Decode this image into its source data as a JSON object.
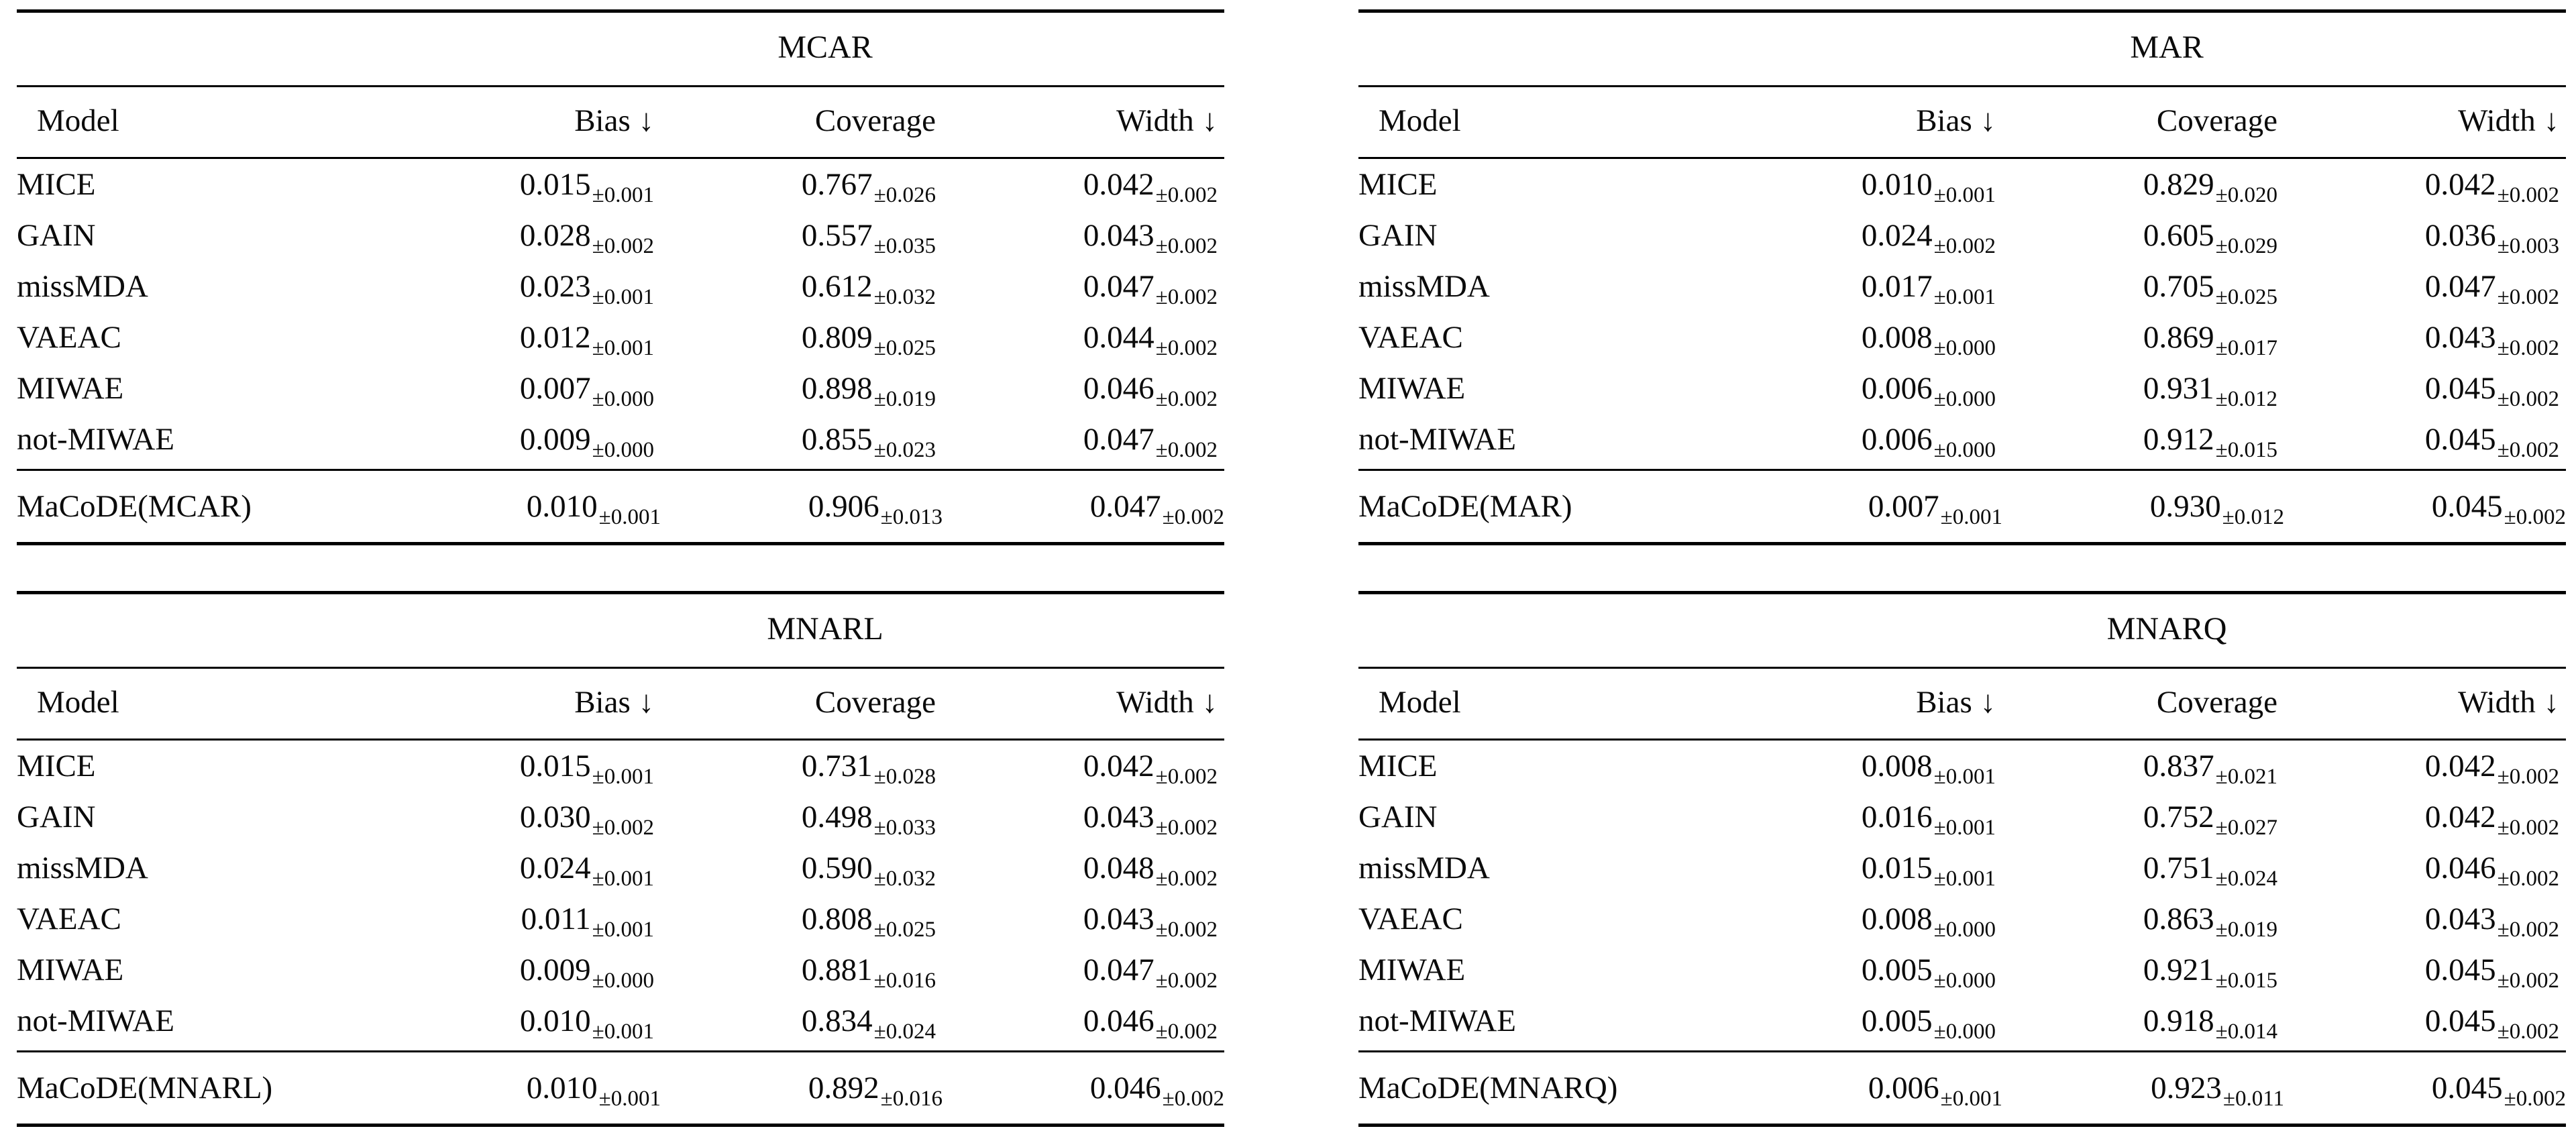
{
  "page": {
    "background": "#ffffff",
    "text_color": "#0b0b0b",
    "rule_color": "#000000"
  },
  "icons": {
    "down_arrow": "↓"
  },
  "tables": [
    {
      "title": "MCAR",
      "columns": [
        "Model",
        "Bias ↓",
        "Coverage",
        "Width ↓"
      ],
      "rows": [
        {
          "model": "MICE",
          "cells": [
            {
              "v": "0.015",
              "e": "±0.001"
            },
            {
              "v": "0.767",
              "e": "±0.026"
            },
            {
              "v": "0.042",
              "e": "±0.002"
            }
          ]
        },
        {
          "model": "GAIN",
          "cells": [
            {
              "v": "0.028",
              "e": "±0.002"
            },
            {
              "v": "0.557",
              "e": "±0.035"
            },
            {
              "v": "0.043",
              "e": "±0.002"
            }
          ]
        },
        {
          "model": "missMDA",
          "cells": [
            {
              "v": "0.023",
              "e": "±0.001"
            },
            {
              "v": "0.612",
              "e": "±0.032"
            },
            {
              "v": "0.047",
              "e": "±0.002"
            }
          ]
        },
        {
          "model": "VAEAC",
          "cells": [
            {
              "v": "0.012",
              "e": "±0.001"
            },
            {
              "v": "0.809",
              "e": "±0.025"
            },
            {
              "v": "0.044",
              "e": "±0.002"
            }
          ]
        },
        {
          "model": "MIWAE",
          "cells": [
            {
              "v": "0.007",
              "e": "±0.000"
            },
            {
              "v": "0.898",
              "e": "±0.019"
            },
            {
              "v": "0.046",
              "e": "±0.002"
            }
          ]
        },
        {
          "model": "not-MIWAE",
          "cells": [
            {
              "v": "0.009",
              "e": "±0.000"
            },
            {
              "v": "0.855",
              "e": "±0.023"
            },
            {
              "v": "0.047",
              "e": "±0.002"
            }
          ]
        }
      ],
      "final_row": {
        "model": "MaCoDE(MCAR)",
        "cells": [
          {
            "v": "0.010",
            "e": "±0.001"
          },
          {
            "v": "0.906",
            "e": "±0.013"
          },
          {
            "v": "0.047",
            "e": "±0.002"
          }
        ]
      }
    },
    {
      "title": "MAR",
      "columns": [
        "Model",
        "Bias ↓",
        "Coverage",
        "Width ↓"
      ],
      "rows": [
        {
          "model": "MICE",
          "cells": [
            {
              "v": "0.010",
              "e": "±0.001"
            },
            {
              "v": "0.829",
              "e": "±0.020"
            },
            {
              "v": "0.042",
              "e": "±0.002"
            }
          ]
        },
        {
          "model": "GAIN",
          "cells": [
            {
              "v": "0.024",
              "e": "±0.002"
            },
            {
              "v": "0.605",
              "e": "±0.029"
            },
            {
              "v": "0.036",
              "e": "±0.003"
            }
          ]
        },
        {
          "model": "missMDA",
          "cells": [
            {
              "v": "0.017",
              "e": "±0.001"
            },
            {
              "v": "0.705",
              "e": "±0.025"
            },
            {
              "v": "0.047",
              "e": "±0.002"
            }
          ]
        },
        {
          "model": "VAEAC",
          "cells": [
            {
              "v": "0.008",
              "e": "±0.000"
            },
            {
              "v": "0.869",
              "e": "±0.017"
            },
            {
              "v": "0.043",
              "e": "±0.002"
            }
          ]
        },
        {
          "model": "MIWAE",
          "cells": [
            {
              "v": "0.006",
              "e": "±0.000"
            },
            {
              "v": "0.931",
              "e": "±0.012"
            },
            {
              "v": "0.045",
              "e": "±0.002"
            }
          ]
        },
        {
          "model": "not-MIWAE",
          "cells": [
            {
              "v": "0.006",
              "e": "±0.000"
            },
            {
              "v": "0.912",
              "e": "±0.015"
            },
            {
              "v": "0.045",
              "e": "±0.002"
            }
          ]
        }
      ],
      "final_row": {
        "model": "MaCoDE(MAR)",
        "cells": [
          {
            "v": "0.007",
            "e": "±0.001"
          },
          {
            "v": "0.930",
            "e": "±0.012"
          },
          {
            "v": "0.045",
            "e": "±0.002"
          }
        ]
      }
    },
    {
      "title": "MNARL",
      "columns": [
        "Model",
        "Bias ↓",
        "Coverage",
        "Width ↓"
      ],
      "rows": [
        {
          "model": "MICE",
          "cells": [
            {
              "v": "0.015",
              "e": "±0.001"
            },
            {
              "v": "0.731",
              "e": "±0.028"
            },
            {
              "v": "0.042",
              "e": "±0.002"
            }
          ]
        },
        {
          "model": "GAIN",
          "cells": [
            {
              "v": "0.030",
              "e": "±0.002"
            },
            {
              "v": "0.498",
              "e": "±0.033"
            },
            {
              "v": "0.043",
              "e": "±0.002"
            }
          ]
        },
        {
          "model": "missMDA",
          "cells": [
            {
              "v": "0.024",
              "e": "±0.001"
            },
            {
              "v": "0.590",
              "e": "±0.032"
            },
            {
              "v": "0.048",
              "e": "±0.002"
            }
          ]
        },
        {
          "model": "VAEAC",
          "cells": [
            {
              "v": "0.011",
              "e": "±0.001"
            },
            {
              "v": "0.808",
              "e": "±0.025"
            },
            {
              "v": "0.043",
              "e": "±0.002"
            }
          ]
        },
        {
          "model": "MIWAE",
          "cells": [
            {
              "v": "0.009",
              "e": "±0.000"
            },
            {
              "v": "0.881",
              "e": "±0.016"
            },
            {
              "v": "0.047",
              "e": "±0.002"
            }
          ]
        },
        {
          "model": "not-MIWAE",
          "cells": [
            {
              "v": "0.010",
              "e": "±0.001"
            },
            {
              "v": "0.834",
              "e": "±0.024"
            },
            {
              "v": "0.046",
              "e": "±0.002"
            }
          ]
        }
      ],
      "final_row": {
        "model": "MaCoDE(MNARL)",
        "cells": [
          {
            "v": "0.010",
            "e": "±0.001"
          },
          {
            "v": "0.892",
            "e": "±0.016"
          },
          {
            "v": "0.046",
            "e": "±0.002"
          }
        ]
      }
    },
    {
      "title": "MNARQ",
      "columns": [
        "Model",
        "Bias ↓",
        "Coverage",
        "Width ↓"
      ],
      "rows": [
        {
          "model": "MICE",
          "cells": [
            {
              "v": "0.008",
              "e": "±0.001"
            },
            {
              "v": "0.837",
              "e": "±0.021"
            },
            {
              "v": "0.042",
              "e": "±0.002"
            }
          ]
        },
        {
          "model": "GAIN",
          "cells": [
            {
              "v": "0.016",
              "e": "±0.001"
            },
            {
              "v": "0.752",
              "e": "±0.027"
            },
            {
              "v": "0.042",
              "e": "±0.002"
            }
          ]
        },
        {
          "model": "missMDA",
          "cells": [
            {
              "v": "0.015",
              "e": "±0.001"
            },
            {
              "v": "0.751",
              "e": "±0.024"
            },
            {
              "v": "0.046",
              "e": "±0.002"
            }
          ]
        },
        {
          "model": "VAEAC",
          "cells": [
            {
              "v": "0.008",
              "e": "±0.000"
            },
            {
              "v": "0.863",
              "e": "±0.019"
            },
            {
              "v": "0.043",
              "e": "±0.002"
            }
          ]
        },
        {
          "model": "MIWAE",
          "cells": [
            {
              "v": "0.005",
              "e": "±0.000"
            },
            {
              "v": "0.921",
              "e": "±0.015"
            },
            {
              "v": "0.045",
              "e": "±0.002"
            }
          ]
        },
        {
          "model": "not-MIWAE",
          "cells": [
            {
              "v": "0.005",
              "e": "±0.000"
            },
            {
              "v": "0.918",
              "e": "±0.014"
            },
            {
              "v": "0.045",
              "e": "±0.002"
            }
          ]
        }
      ],
      "final_row": {
        "model": "MaCoDE(MNARQ)",
        "cells": [
          {
            "v": "0.006",
            "e": "±0.001"
          },
          {
            "v": "0.923",
            "e": "±0.011"
          },
          {
            "v": "0.045",
            "e": "±0.002"
          }
        ]
      }
    }
  ]
}
